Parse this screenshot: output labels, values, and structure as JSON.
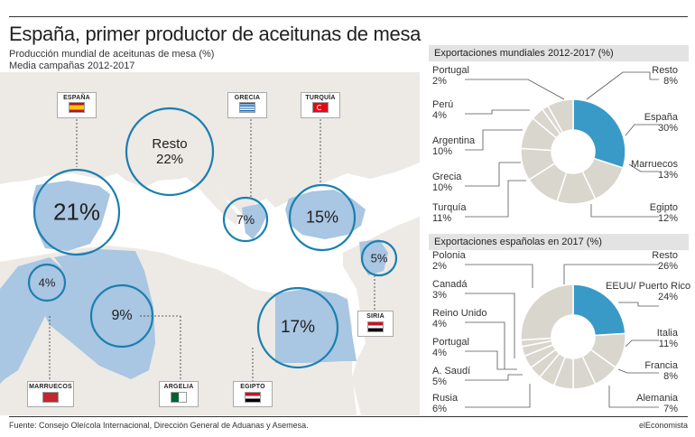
{
  "title": "España, primer productor de aceitunas de mesa",
  "subtitle": "Producción mundial de aceitunas de mesa (%)",
  "subtitle2": "Media campañas 2012-2017",
  "source": "Fuente: Consejo Oleícola Internacional, Dirección General de Aduanas y Asemesa.",
  "brand": "elEconomista",
  "colors": {
    "highlight": "#3a9ac7",
    "slice": "#d9d6cd",
    "land": "#ede9e5",
    "map_water": "#ffffff",
    "country": "#a9c6e2",
    "bubble": "#1b7fb0"
  },
  "map": {
    "countries": [
      {
        "name": "ESPAÑA",
        "flag": "spain-flag"
      },
      {
        "name": "GRECIA",
        "flag": "greece-flag"
      },
      {
        "name": "TURQUÍA",
        "flag": "turkey-flag"
      },
      {
        "name": "SIRIA",
        "flag": "syria-flag"
      },
      {
        "name": "MARRUECOS",
        "flag": "morocco-flag"
      },
      {
        "name": "ARGELIA",
        "flag": "algeria-flag"
      },
      {
        "name": "EGIPTO",
        "flag": "egypt-flag"
      }
    ],
    "bubbles": [
      {
        "label": "21%",
        "value": 21
      },
      {
        "label": "Resto",
        "value_label": "22%",
        "value": 22
      },
      {
        "label": "7%",
        "value": 7
      },
      {
        "label": "15%",
        "value": 15
      },
      {
        "label": "5%",
        "value": 5
      },
      {
        "label": "4%",
        "value": 4
      },
      {
        "label": "9%",
        "value": 9
      },
      {
        "label": "17%",
        "value": 17
      }
    ]
  },
  "chart_data": [
    {
      "type": "pie",
      "title": "Producción mundial de aceitunas de mesa (%)",
      "categories": [
        "España",
        "Resto",
        "Egipto",
        "Turquía",
        "Argelia",
        "Grecia",
        "Siria",
        "Marruecos"
      ],
      "values": [
        21,
        22,
        17,
        15,
        9,
        7,
        5,
        4
      ]
    },
    {
      "type": "pie",
      "title": "Exportaciones mundiales 2012-2017 (%)",
      "categories": [
        "España",
        "Marruecos",
        "Egipto",
        "Turquía",
        "Grecia",
        "Argentina",
        "Perú",
        "Portugal",
        "Resto"
      ],
      "values": [
        30,
        13,
        12,
        11,
        10,
        10,
        4,
        2,
        8
      ],
      "labels": [
        "30%",
        "13%",
        "12%",
        "11%",
        "10%",
        "10%",
        "4%",
        "2%",
        "8%"
      ]
    },
    {
      "type": "pie",
      "title": "Exportaciones españolas en 2017 (%)",
      "categories": [
        "EEUU/ Puerto Rico",
        "Italia",
        "Francia",
        "Alemania",
        "Rusia",
        "A. Saudí",
        "Portugal",
        "Reino Unido",
        "Canadá",
        "Polonia",
        "Resto"
      ],
      "values": [
        24,
        11,
        8,
        7,
        6,
        5,
        4,
        4,
        3,
        2,
        26
      ],
      "labels": [
        "24%",
        "11%",
        "8%",
        "7%",
        "6%",
        "5%",
        "4%",
        "4%",
        "3%",
        "2%",
        "26%"
      ]
    }
  ]
}
